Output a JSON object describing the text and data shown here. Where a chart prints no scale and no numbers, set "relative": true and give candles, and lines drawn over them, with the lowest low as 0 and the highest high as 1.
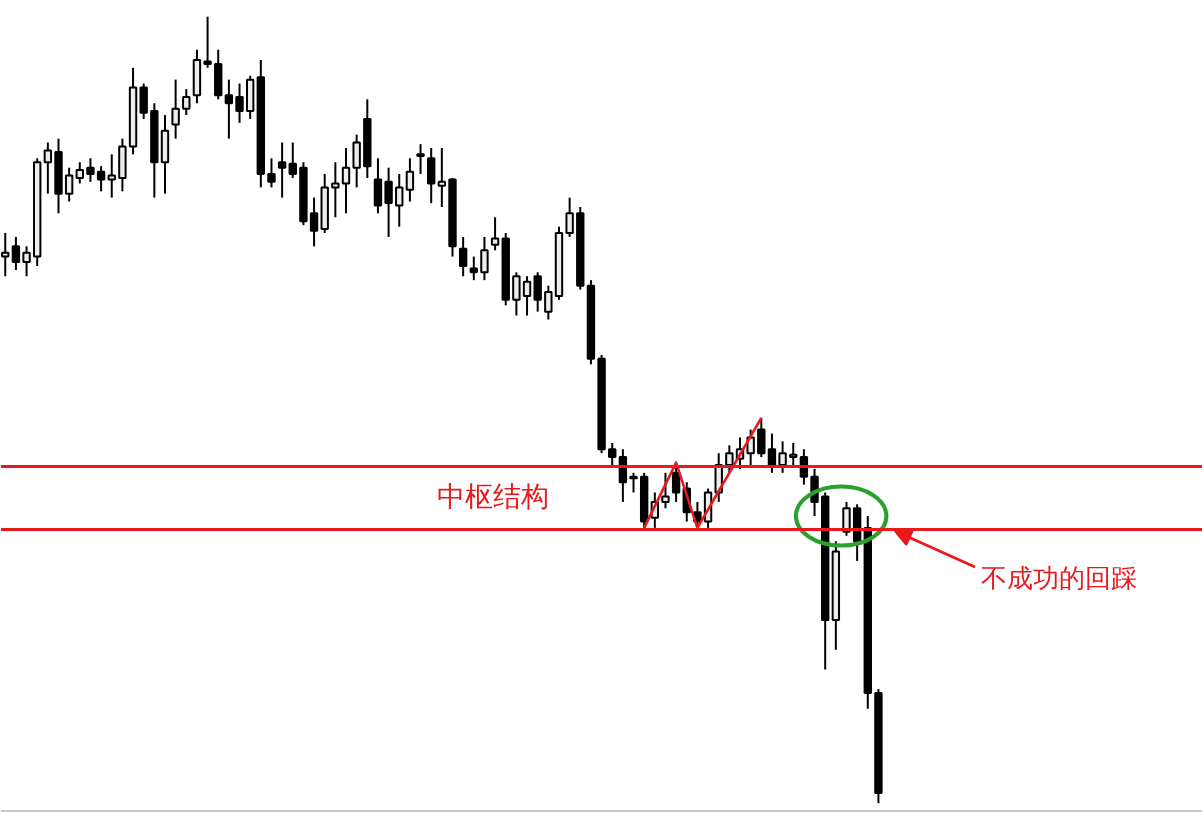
{
  "chart_data": {
    "type": "candlestick",
    "relative": true,
    "categories": [
      null,
      null,
      null,
      null,
      null,
      null,
      null,
      null,
      null,
      null,
      null,
      null,
      null,
      null,
      null,
      null,
      null,
      null,
      null,
      null,
      null,
      null,
      null,
      null,
      null,
      null,
      null,
      null,
      null,
      null,
      null,
      null,
      null,
      null,
      null,
      null,
      null,
      null,
      null,
      null,
      null,
      null,
      null,
      null,
      null,
      null,
      null,
      null,
      null,
      null,
      null,
      null,
      null,
      null,
      null,
      null,
      null,
      null,
      null,
      null,
      null,
      null,
      null,
      null,
      null,
      null,
      null,
      null,
      null,
      null,
      null,
      null,
      null,
      null,
      null,
      null,
      null,
      null,
      null,
      null,
      null,
      null,
      null
    ],
    "ohlc": [
      [
        0.695,
        0.725,
        0.67,
        0.7
      ],
      [
        0.708,
        0.72,
        0.678,
        0.688
      ],
      [
        0.688,
        0.708,
        0.67,
        0.7
      ],
      [
        0.695,
        0.82,
        0.683,
        0.815
      ],
      [
        0.815,
        0.84,
        0.775,
        0.83
      ],
      [
        0.828,
        0.845,
        0.75,
        0.775
      ],
      [
        0.775,
        0.808,
        0.765,
        0.798
      ],
      [
        0.795,
        0.815,
        0.788,
        0.805
      ],
      [
        0.808,
        0.82,
        0.79,
        0.8
      ],
      [
        0.803,
        0.81,
        0.778,
        0.793
      ],
      [
        0.793,
        0.825,
        0.77,
        0.798
      ],
      [
        0.795,
        0.845,
        0.778,
        0.835
      ],
      [
        0.835,
        0.935,
        0.825,
        0.91
      ],
      [
        0.91,
        0.915,
        0.87,
        0.878
      ],
      [
        0.88,
        0.89,
        0.77,
        0.815
      ],
      [
        0.815,
        0.875,
        0.775,
        0.855
      ],
      [
        0.863,
        0.92,
        0.845,
        0.883
      ],
      [
        0.883,
        0.908,
        0.875,
        0.898
      ],
      [
        0.9,
        0.958,
        0.89,
        0.945
      ],
      [
        0.943,
        1.0,
        0.935,
        0.94
      ],
      [
        0.94,
        0.958,
        0.895,
        0.9
      ],
      [
        0.9,
        0.92,
        0.845,
        0.89
      ],
      [
        0.898,
        0.915,
        0.865,
        0.88
      ],
      [
        0.88,
        0.925,
        0.87,
        0.92
      ],
      [
        0.923,
        0.945,
        0.783,
        0.8
      ],
      [
        0.8,
        0.82,
        0.783,
        0.79
      ],
      [
        0.815,
        0.84,
        0.77,
        0.808
      ],
      [
        0.813,
        0.84,
        0.795,
        0.8
      ],
      [
        0.808,
        0.815,
        0.735,
        0.74
      ],
      [
        0.75,
        0.77,
        0.708,
        0.728
      ],
      [
        0.73,
        0.8,
        0.725,
        0.783
      ],
      [
        0.783,
        0.815,
        0.745,
        0.788
      ],
      [
        0.788,
        0.833,
        0.75,
        0.808
      ],
      [
        0.808,
        0.85,
        0.783,
        0.84
      ],
      [
        0.87,
        0.895,
        0.795,
        0.81
      ],
      [
        0.793,
        0.82,
        0.75,
        0.76
      ],
      [
        0.79,
        0.808,
        0.72,
        0.763
      ],
      [
        0.76,
        0.8,
        0.733,
        0.783
      ],
      [
        0.78,
        0.82,
        0.765,
        0.803
      ],
      [
        0.825,
        0.838,
        0.8,
        0.823
      ],
      [
        0.82,
        0.833,
        0.763,
        0.788
      ],
      [
        0.785,
        0.833,
        0.758,
        0.79
      ],
      [
        0.793,
        0.795,
        0.695,
        0.708
      ],
      [
        0.705,
        0.72,
        0.67,
        0.683
      ],
      [
        0.68,
        0.695,
        0.665,
        0.675
      ],
      [
        0.675,
        0.72,
        0.665,
        0.703
      ],
      [
        0.71,
        0.745,
        0.703,
        0.718
      ],
      [
        0.718,
        0.725,
        0.633,
        0.64
      ],
      [
        0.64,
        0.675,
        0.62,
        0.67
      ],
      [
        0.645,
        0.67,
        0.62,
        0.663
      ],
      [
        0.67,
        0.675,
        0.625,
        0.64
      ],
      [
        0.625,
        0.658,
        0.615,
        0.65
      ],
      [
        0.645,
        0.733,
        0.64,
        0.725
      ],
      [
        0.725,
        0.77,
        0.72,
        0.75
      ],
      [
        0.75,
        0.758,
        0.653,
        0.658
      ],
      [
        0.658,
        0.665,
        0.558,
        0.565
      ],
      [
        0.565,
        0.57,
        0.445,
        0.45
      ],
      [
        0.45,
        0.458,
        0.428,
        0.44
      ],
      [
        0.44,
        0.45,
        0.383,
        0.408
      ],
      [
        0.415,
        0.42,
        0.395,
        0.413
      ],
      [
        0.415,
        0.42,
        0.35,
        0.358
      ],
      [
        0.363,
        0.395,
        0.35,
        0.383
      ],
      [
        0.383,
        0.42,
        0.375,
        0.39
      ],
      [
        0.42,
        0.433,
        0.383,
        0.395
      ],
      [
        0.4,
        0.408,
        0.358,
        0.37
      ],
      [
        0.37,
        0.383,
        0.35,
        0.358
      ],
      [
        0.358,
        0.4,
        0.35,
        0.395
      ],
      [
        0.395,
        0.445,
        0.383,
        0.43
      ],
      [
        0.43,
        0.455,
        0.42,
        0.445
      ],
      [
        0.438,
        0.465,
        0.425,
        0.45
      ],
      [
        0.445,
        0.475,
        0.43,
        0.465
      ],
      [
        0.475,
        0.49,
        0.44,
        0.445
      ],
      [
        0.45,
        0.47,
        0.42,
        0.43
      ],
      [
        0.43,
        0.46,
        0.42,
        0.445
      ],
      [
        0.44,
        0.458,
        0.43,
        0.443
      ],
      [
        0.44,
        0.45,
        0.405,
        0.415
      ],
      [
        0.415,
        0.425,
        0.365,
        0.383
      ],
      [
        0.39,
        0.395,
        0.17,
        0.233
      ],
      [
        0.233,
        0.333,
        0.195,
        0.32
      ],
      [
        0.345,
        0.383,
        0.34,
        0.375
      ],
      [
        0.375,
        0.38,
        0.308,
        0.333
      ],
      [
        0.35,
        0.365,
        0.12,
        0.14
      ],
      [
        0.14,
        0.145,
        0.0,
        0.013
      ]
    ],
    "series": [
      {
        "type": "line",
        "color": "#e8191a",
        "values": [
          null,
          null,
          null,
          null,
          null,
          null,
          null,
          null,
          null,
          null,
          null,
          null,
          null,
          null,
          null,
          null,
          null,
          null,
          null,
          null,
          null,
          null,
          null,
          null,
          null,
          null,
          null,
          null,
          null,
          null,
          null,
          null,
          null,
          null,
          null,
          null,
          null,
          null,
          null,
          null,
          null,
          null,
          null,
          null,
          null,
          null,
          null,
          null,
          null,
          null,
          null,
          null,
          null,
          null,
          null,
          null,
          null,
          null,
          null,
          null,
          0.35,
          null,
          null,
          0.433,
          null,
          0.35,
          null,
          null,
          null,
          null,
          null,
          0.49,
          null,
          null,
          null,
          null,
          null,
          null,
          null,
          null,
          null,
          null,
          null
        ]
      }
    ],
    "ref_lines": [
      {
        "axis": "y",
        "value": 0.428,
        "color": "#e8191a"
      },
      {
        "axis": "y",
        "value": 0.348,
        "color": "#e8191a"
      }
    ],
    "annotations": [
      "中枢结构",
      "不成功的回踩"
    ]
  }
}
